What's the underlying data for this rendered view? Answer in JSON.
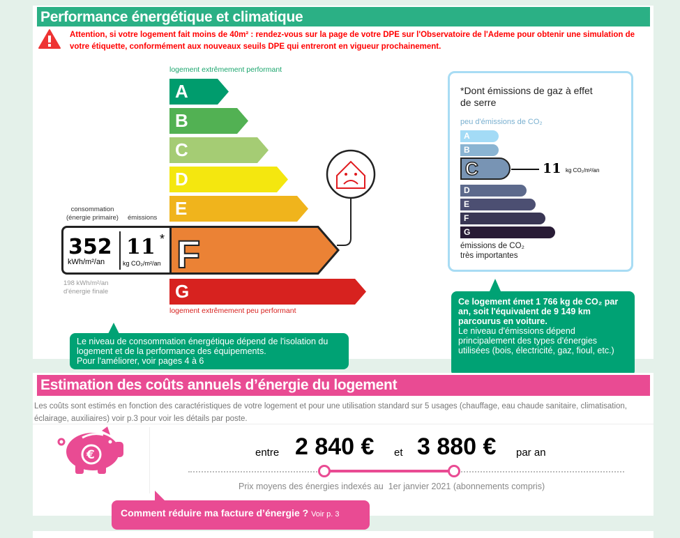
{
  "dpe": {
    "title": "Performance énergétique et climatique",
    "warning": "Attention, si votre logement fait moins de 40m² : rendez-vous sur la page de votre DPE sur l'Observatoire de l'Ademe pour obtenir une simulation de votre étiquette, conformément aux nouveaux seuils DPE qui entreront en vigueur prochainement.",
    "top_label": "logement extrêmement performant",
    "bottom_label": "logement extrêmement peu performant",
    "classes": [
      "A",
      "B",
      "C",
      "D",
      "E",
      "F",
      "G"
    ],
    "class_colors": [
      "#009c6d",
      "#52b153",
      "#a5cc74",
      "#f4e70f",
      "#f0b41c",
      "#eb8235",
      "#d7221f"
    ],
    "current_class": "F",
    "consumption_label": "consommation",
    "consumption_sub": "(énergie primaire)",
    "emissions_label": "émissions",
    "consumption_value": "352",
    "consumption_unit": "kWh/m²/an",
    "emissions_value": "11",
    "emissions_star": "*",
    "emissions_unit": "kg CO₂/m²/an",
    "final_energy": "198 kWh/m²/an",
    "final_energy_label": "d'énergie finale",
    "bubble_text": "Le niveau de consommation énergétique dépend de l'isolation du logement et de la performance des équipements.",
    "bubble_text2": "Pour l'améliorer, voir pages 4 à 6"
  },
  "ges": {
    "title": "*Dont émissions de gaz à effet de serre",
    "top_label": "peu d'émissions de CO₂",
    "bottom_label": "émissions de CO₂",
    "bottom_label2": "très importantes",
    "classes": [
      "A",
      "B",
      "C",
      "D",
      "E",
      "F",
      "G"
    ],
    "class_colors": [
      "#a3dbf6",
      "#8ab4d2",
      "#7894b4",
      "#5d6a8c",
      "#4c4f72",
      "#393654",
      "#281b35"
    ],
    "current_class": "C",
    "value": "11",
    "unit": "kg CO₂/m²/an",
    "bubble_bold": "Ce logement émet 1 766 kg de CO₂ par an, soit l'équivalent de 9 149 km parcourus en voiture.",
    "bubble_text": "Le niveau d'émissions dépend principalement des types d'énergies utilisées (bois, électricité, gaz, fioul, etc.)"
  },
  "costs": {
    "title": "Estimation des coûts annuels d’énergie du logement",
    "description": "Les coûts sont estimés en fonction des caractéristiques de votre logement et pour une utilisation standard sur 5 usages (chauffage, eau chaude sanitaire, climatisation, éclairage, auxiliaires) voir p.3 pour voir les détails par poste.",
    "between": "entre",
    "min": "2 840 €",
    "and": "et",
    "max": "3 880 €",
    "per_year": "par an",
    "note": "Prix moyens des énergies indexés au  1er janvier 2021 (abonnements compris)",
    "tip": "Comment réduire ma facture d’énergie ?",
    "tip_link": "Voir p. 3"
  },
  "colors": {
    "green": "#2bb085",
    "pink": "#e94b93",
    "bubble_green": "#00a274",
    "warning_red": "#ff0000"
  }
}
